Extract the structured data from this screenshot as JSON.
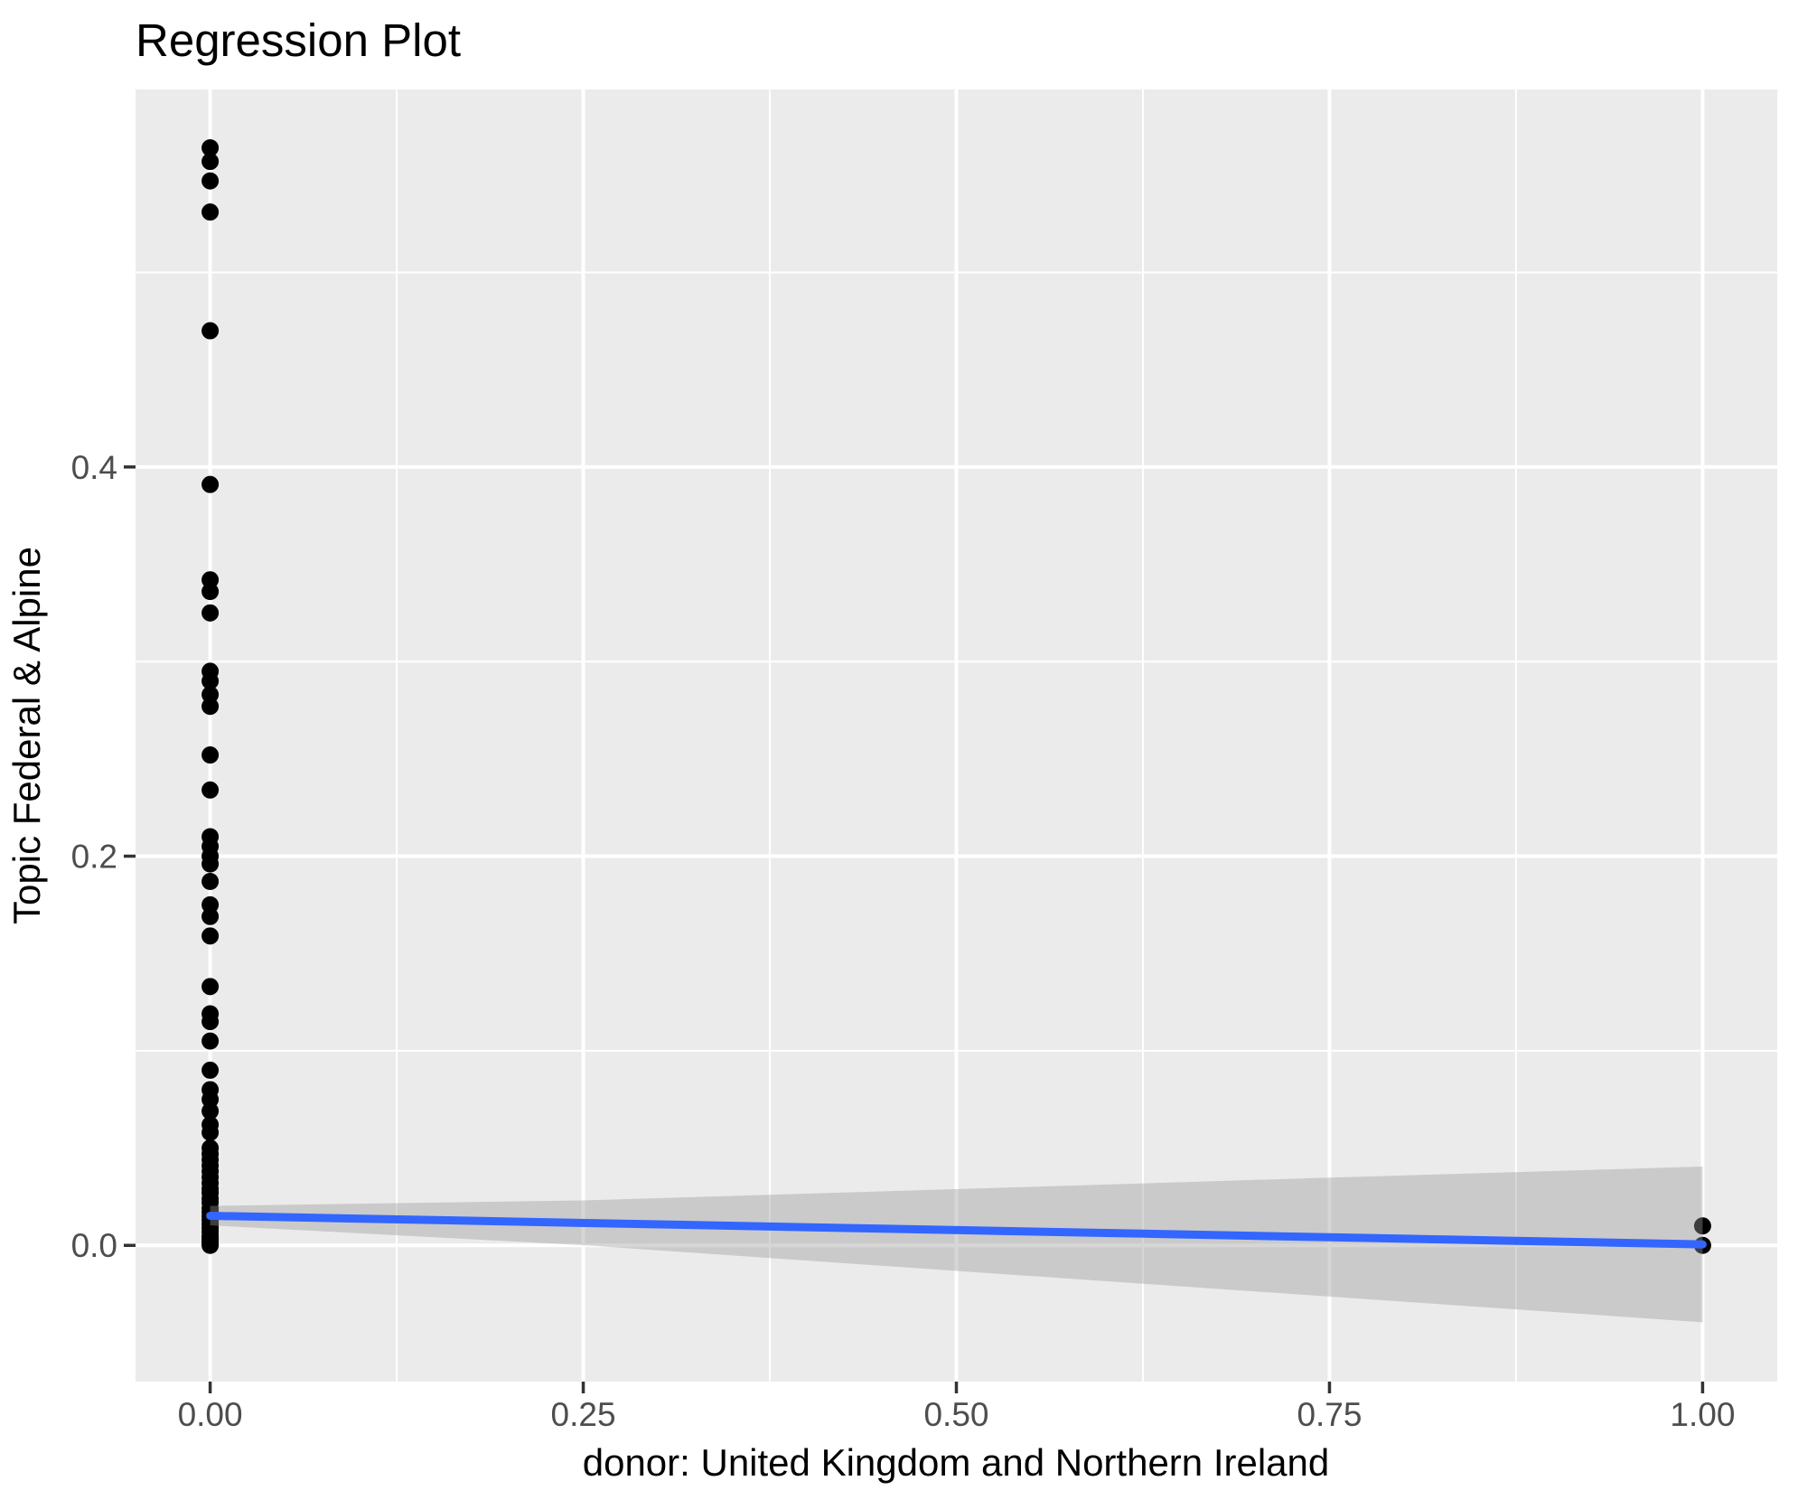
{
  "chart_data": {
    "type": "scatter",
    "title": "Regression Plot",
    "xlabel": "donor: United Kingdom and Northern Ireland",
    "ylabel": "Topic Federal & Alpine",
    "xlim": [
      -0.05,
      1.05
    ],
    "ylim": [
      -0.07,
      0.594
    ],
    "grid": true,
    "legend": "none",
    "x_axis": {
      "major": [
        0.0,
        0.25,
        0.5,
        0.75,
        1.0
      ],
      "major_labels": [
        "0.00",
        "0.25",
        "0.50",
        "0.75",
        "1.00"
      ],
      "minor": [
        0.125,
        0.375,
        0.625,
        0.875
      ]
    },
    "y_axis": {
      "major": [
        0.0,
        0.2,
        0.4
      ],
      "major_labels": [
        "0.0",
        "0.2",
        "0.4"
      ],
      "minor": [
        0.1,
        0.3,
        0.5
      ]
    },
    "points": [
      [
        0,
        0.564
      ],
      [
        0,
        0.557
      ],
      [
        0,
        0.547
      ],
      [
        0,
        0.531
      ],
      [
        0,
        0.47
      ],
      [
        0,
        0.391
      ],
      [
        0,
        0.342
      ],
      [
        0,
        0.336
      ],
      [
        0,
        0.325
      ],
      [
        0,
        0.295
      ],
      [
        0,
        0.29
      ],
      [
        0,
        0.283
      ],
      [
        0,
        0.277
      ],
      [
        0,
        0.252
      ],
      [
        0,
        0.234
      ],
      [
        0,
        0.21
      ],
      [
        0,
        0.205
      ],
      [
        0,
        0.2
      ],
      [
        0,
        0.196
      ],
      [
        0,
        0.187
      ],
      [
        0,
        0.175
      ],
      [
        0,
        0.169
      ],
      [
        0,
        0.159
      ],
      [
        0,
        0.133
      ],
      [
        0,
        0.119
      ],
      [
        0,
        0.115
      ],
      [
        0,
        0.105
      ],
      [
        0,
        0.09
      ],
      [
        0,
        0.08
      ],
      [
        0,
        0.075
      ],
      [
        0,
        0.069
      ],
      [
        0,
        0.062
      ],
      [
        0,
        0.058
      ],
      [
        0,
        0.05
      ],
      [
        0,
        0.047
      ],
      [
        0,
        0.044
      ],
      [
        0,
        0.041
      ],
      [
        0,
        0.038
      ],
      [
        0,
        0.035
      ],
      [
        0,
        0.032
      ],
      [
        0,
        0.029
      ],
      [
        0,
        0.027
      ],
      [
        0,
        0.024
      ],
      [
        0,
        0.022
      ],
      [
        0,
        0.019
      ],
      [
        0,
        0.017
      ],
      [
        0,
        0.015
      ],
      [
        0,
        0.013
      ],
      [
        0,
        0.011
      ],
      [
        0,
        0.009
      ],
      [
        0,
        0.007
      ],
      [
        0,
        0.005
      ],
      [
        0,
        0.004
      ],
      [
        0,
        0.003
      ],
      [
        0,
        0.002
      ],
      [
        0,
        0.001
      ],
      [
        0,
        0.0
      ],
      [
        1,
        0.01
      ],
      [
        1,
        0.0
      ]
    ],
    "regression_line": {
      "x": [
        0,
        1
      ],
      "y": [
        0.0152,
        0.0005
      ]
    },
    "confidence_band": {
      "x": [
        0.0,
        0.25,
        0.5,
        0.75,
        1.0
      ],
      "upper": [
        0.0203,
        0.0231,
        0.0289,
        0.0348,
        0.0405
      ],
      "lower": [
        0.0103,
        0.0001,
        -0.0131,
        -0.0263,
        -0.0395
      ]
    },
    "style": {
      "panel_bg": "#EBEBEB",
      "grid_color": "#FFFFFF",
      "point_color": "#000000",
      "line_color": "#3366FF",
      "ribbon_color": "#999999",
      "ribbon_opacity": 0.4,
      "tick_mark_color": "#333333",
      "tick_label_color": "#4D4D4D",
      "title_color": "#000000"
    }
  }
}
